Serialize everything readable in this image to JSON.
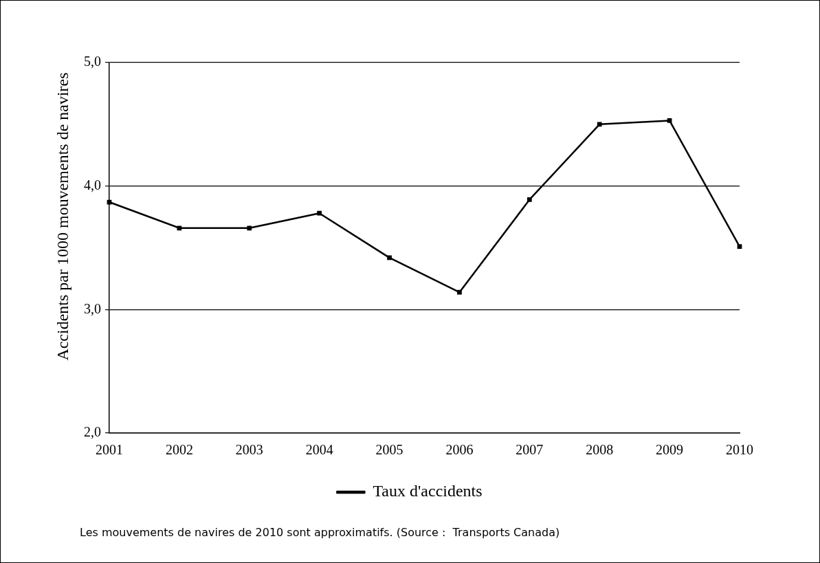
{
  "chart_data": {
    "type": "line",
    "ylabel": "Accidents par 1000 mouvements de navires",
    "categories": [
      "2001",
      "2002",
      "2003",
      "2004",
      "2005",
      "2006",
      "2007",
      "2008",
      "2009",
      "2010"
    ],
    "series": [
      {
        "name": "Taux d'accidents",
        "color": "#000000",
        "values": [
          3.87,
          3.66,
          3.66,
          3.78,
          3.42,
          3.14,
          3.89,
          4.5,
          4.53,
          3.51
        ]
      }
    ],
    "ylim": [
      2,
      5
    ],
    "yticks": [
      {
        "value": 2,
        "label": "2,0"
      },
      {
        "value": 3,
        "label": "3,0"
      },
      {
        "value": 4,
        "label": "4,0"
      },
      {
        "value": 5,
        "label": "5,0"
      }
    ],
    "grid": "y",
    "legend": "bottom",
    "marker": "square",
    "line_style": "solid",
    "annotations": [
      "Les mouvements de navires de 2010 sont approximatifs. (Source :  Transports Canada)"
    ]
  }
}
